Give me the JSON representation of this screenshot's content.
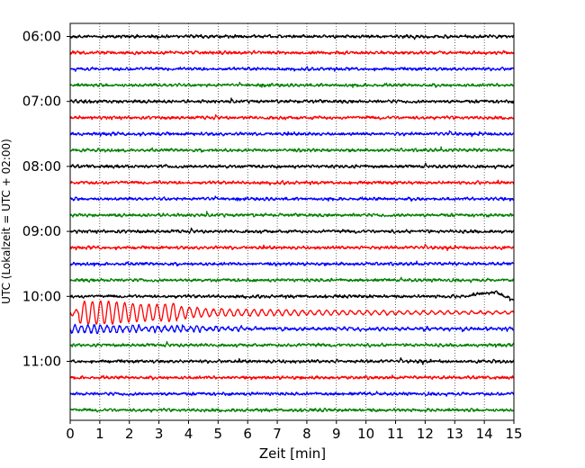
{
  "chart_data": {
    "type": "line",
    "title": "",
    "xlabel": "Zeit  [min]",
    "ylabel": "UTC (Lokalzeit = UTC + 02:00)",
    "xlim": [
      0,
      15
    ],
    "x_ticks": [
      "0",
      "1",
      "2",
      "3",
      "4",
      "5",
      "6",
      "7",
      "8",
      "9",
      "10",
      "11",
      "12",
      "13",
      "14",
      "15"
    ],
    "y_ticks": [
      "06:00",
      "07:00",
      "08:00",
      "09:00",
      "10:00",
      "11:00"
    ],
    "grid": "vertical dotted",
    "colors": [
      "#000000",
      "#ff0000",
      "#0000ff",
      "#008000"
    ],
    "traces_start": "06:00",
    "trace_interval_min": 15,
    "trace_count": 24,
    "events": [
      {
        "trace_start": "10:00",
        "x_start_min": 13.5,
        "x_end_min": 15,
        "description": "black trace rises and dips at right end"
      },
      {
        "trace_start": "10:15",
        "x_start_min": 0,
        "x_end_min": 15,
        "description": "large red oscillation, strongest near 1-3.5 min, decaying after"
      },
      {
        "trace_start": "10:30",
        "x_start_min": 0,
        "x_end_min": 6,
        "description": "moderate blue oscillation"
      }
    ]
  }
}
